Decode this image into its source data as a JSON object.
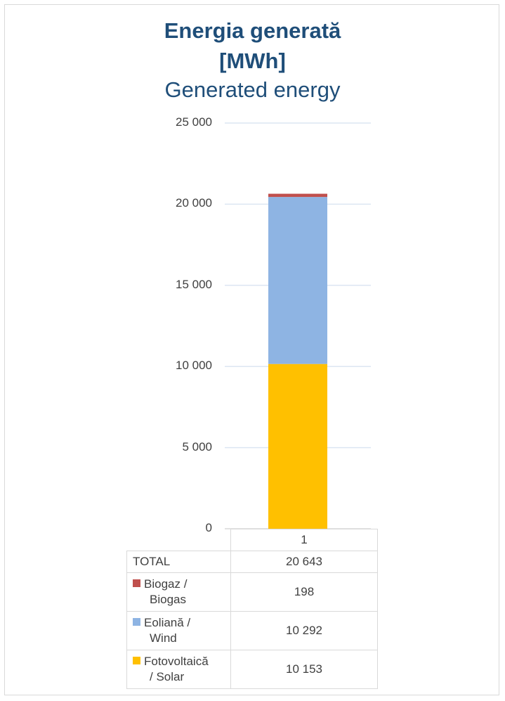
{
  "title_ro": "Energia generată",
  "title_unit": "[MWh]",
  "title_en": "Generated energy",
  "colors": {
    "biogas": "#c0504d",
    "wind": "#8eb4e3",
    "solar": "#ffc000",
    "title": "#1f4e79",
    "grid": "#d9d9d9"
  },
  "chart_data": {
    "type": "bar",
    "stacked": true,
    "categories": [
      "1"
    ],
    "ylim": [
      0,
      25000
    ],
    "yticks": [
      "0",
      "5 000",
      "10 000",
      "15 000",
      "20 000",
      "25 000"
    ],
    "ytick_values": [
      0,
      5000,
      10000,
      15000,
      20000,
      25000
    ],
    "grid": true,
    "series": [
      {
        "name": "Fotovoltaică / Solar",
        "values": [
          10153
        ],
        "color": "#ffc000"
      },
      {
        "name": "Eoliană / Wind",
        "values": [
          10292
        ],
        "color": "#8eb4e3"
      },
      {
        "name": "Biogaz / Biogas",
        "values": [
          198
        ],
        "color": "#c0504d"
      }
    ]
  },
  "table": {
    "header": "1",
    "total_label": "TOTAL",
    "total_value": "20 643",
    "rows": [
      {
        "label_line1": "Biogaz /",
        "label_line2": "Biogas",
        "value": "198",
        "color_key": "biogas"
      },
      {
        "label_line1": "Eoliană /",
        "label_line2": "Wind",
        "value": "10 292",
        "color_key": "wind"
      },
      {
        "label_line1": "Fotovoltaică",
        "label_line2": "/ Solar",
        "value": "10 153",
        "color_key": "solar"
      }
    ]
  }
}
